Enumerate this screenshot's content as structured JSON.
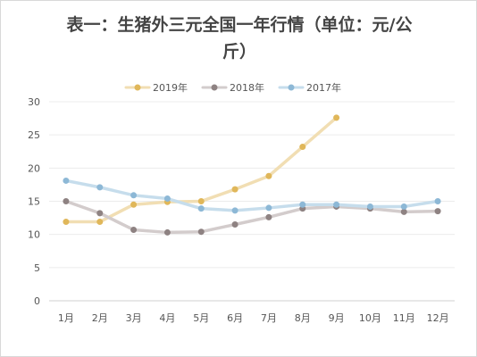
{
  "chart_data": {
    "type": "line",
    "title": "表一：生猪外三元全国一年行情（单位：元/公斤）",
    "categories": [
      "1月",
      "2月",
      "3月",
      "4月",
      "5月",
      "6月",
      "7月",
      "8月",
      "9月",
      "10月",
      "11月",
      "12月"
    ],
    "ylim": [
      0,
      30
    ],
    "yticks": [
      0,
      5,
      10,
      15,
      20,
      25,
      30
    ],
    "grid": true,
    "legend_position": "top",
    "series": [
      {
        "name": "2019年",
        "color": "#f1deb3",
        "marker_color": "#e0b75a",
        "values": [
          11.9,
          11.9,
          14.5,
          14.9,
          15.0,
          16.8,
          18.8,
          23.2,
          27.6,
          null,
          null,
          null
        ]
      },
      {
        "name": "2018年",
        "color": "#d3cccc",
        "marker_color": "#8e8282",
        "values": [
          15.0,
          13.2,
          10.7,
          10.3,
          10.4,
          11.5,
          12.6,
          13.9,
          14.2,
          13.9,
          13.4,
          13.5
        ]
      },
      {
        "name": "2017年",
        "color": "#c6ddec",
        "marker_color": "#8db8d6",
        "values": [
          18.1,
          17.1,
          15.9,
          15.4,
          13.9,
          13.6,
          14.0,
          14.5,
          14.5,
          14.2,
          14.2,
          15.0
        ]
      }
    ]
  }
}
